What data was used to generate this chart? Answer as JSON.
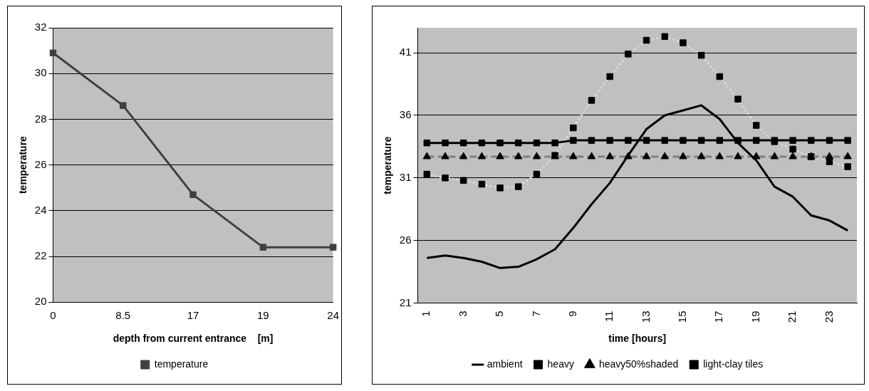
{
  "chart_data": [
    {
      "type": "line",
      "xlabel": "depth from current entrance    [m]",
      "ylabel": "temperature",
      "categories": [
        "0",
        "8.5",
        "17",
        "19",
        "24"
      ],
      "series": [
        {
          "name": "temperature",
          "color": "#404040",
          "values": [
            30.9,
            28.6,
            24.7,
            22.4,
            22.4
          ],
          "marker": "square",
          "line_style": "solid"
        }
      ],
      "ylim": [
        20,
        32
      ],
      "yticks": [
        20,
        22,
        24,
        26,
        28,
        30,
        32
      ],
      "grid": "y",
      "legend": "bottom"
    },
    {
      "type": "line",
      "xlabel": "time [hours]",
      "ylabel": "temperature",
      "categories": [
        "1",
        null,
        "3",
        null,
        "5",
        null,
        "7",
        null,
        "9",
        null,
        "11",
        null,
        "13",
        null,
        "15",
        null,
        "17",
        null,
        "19",
        null,
        "21",
        null,
        "23",
        null
      ],
      "series": [
        {
          "name": "ambient",
          "color": "#000000",
          "values": [
            24.6,
            24.8,
            24.6,
            24.3,
            23.8,
            23.9,
            24.5,
            25.3,
            27.0,
            28.9,
            30.6,
            32.8,
            34.9,
            36.0,
            36.4,
            36.8,
            35.7,
            33.8,
            32.4,
            30.3,
            29.5,
            28.0,
            27.6,
            26.8
          ],
          "marker": "none",
          "line_style": "solid"
        },
        {
          "name": "heavy",
          "color": "#000000",
          "values": [
            33.8,
            33.8,
            33.8,
            33.8,
            33.8,
            33.8,
            33.8,
            33.8,
            34.0,
            34.0,
            34.0,
            34.0,
            34.0,
            34.0,
            34.0,
            34.0,
            34.0,
            34.0,
            34.0,
            34.0,
            34.0,
            34.0,
            34.0,
            34.0
          ],
          "marker": "square",
          "line_style": "solid"
        },
        {
          "name": "heavy50%shaded",
          "color": "#808080",
          "values": [
            32.7,
            32.7,
            32.7,
            32.7,
            32.7,
            32.7,
            32.7,
            32.7,
            32.7,
            32.7,
            32.7,
            32.7,
            32.7,
            32.7,
            32.7,
            32.7,
            32.7,
            32.7,
            32.7,
            32.7,
            32.7,
            32.7,
            32.7,
            32.7
          ],
          "marker": "triangle",
          "line_style": "dashed"
        },
        {
          "name": "light-clay tiles",
          "color": "#d9d9d9",
          "values": [
            31.3,
            31.0,
            30.8,
            30.5,
            30.2,
            30.3,
            31.3,
            32.8,
            35.0,
            37.2,
            39.1,
            40.9,
            42.0,
            42.3,
            41.8,
            40.8,
            39.1,
            37.3,
            35.2,
            33.9,
            33.3,
            32.7,
            32.3,
            31.9
          ],
          "marker": "square",
          "line_style": "dotted"
        }
      ],
      "ylim": [
        21,
        43
      ],
      "yticks": [
        21,
        26,
        31,
        36,
        41
      ],
      "grid": "y",
      "legend": "bottom"
    }
  ]
}
